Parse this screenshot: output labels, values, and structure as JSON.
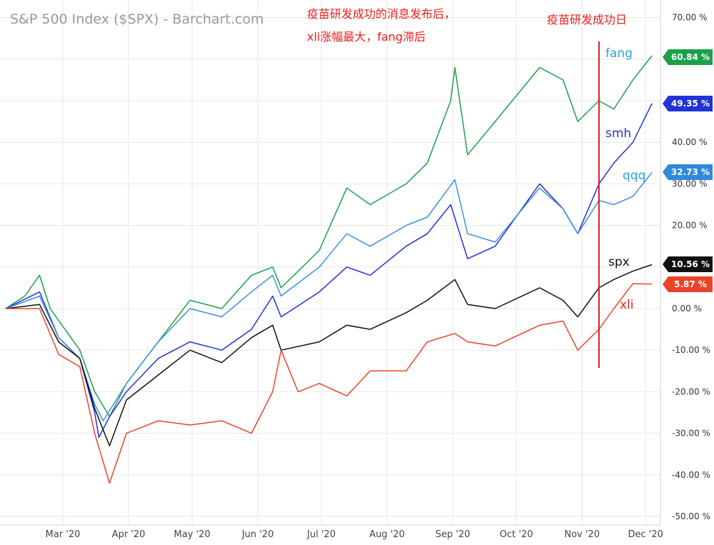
{
  "chart_data": {
    "type": "line",
    "title": "S&P 500 Index ($SPX) - Barchart.com",
    "annotations": {
      "left_line1": "疫苗研发成功的消息发布后，",
      "left_line2": "xli涨幅最大，fang滞后",
      "vline_label": "疫苗研发成功日",
      "vline_date": "2020-11-09"
    },
    "y_axis": {
      "ticks": [
        70,
        60,
        50,
        40,
        30,
        20,
        10,
        0,
        -10,
        -20,
        -30,
        -40,
        -50
      ],
      "tick_labels": [
        "70.00 %",
        "60.00 %",
        "50.00 %",
        "40.00 %",
        "30.00 %",
        "20.00 %",
        "10.00 %",
        "0.00 %",
        "-10.00 %",
        "-20.00 %",
        "-30.00 %",
        "-40.00 %",
        "-50.00 %"
      ],
      "range": [
        -50,
        70
      ]
    },
    "x_axis": {
      "tick_labels": [
        "Mar '20",
        "Apr '20",
        "May '20",
        "Jun '20",
        "Jul '20",
        "Aug '20",
        "Sep '20",
        "Oct '20",
        "Nov '20",
        "Dec '20"
      ],
      "tick_dates": [
        "2020-03-01",
        "2020-04-01",
        "2020-05-01",
        "2020-06-01",
        "2020-07-01",
        "2020-08-01",
        "2020-09-01",
        "2020-10-01",
        "2020-11-01",
        "2020-12-01"
      ],
      "range": [
        "2020-02-01",
        "2020-12-07"
      ]
    },
    "grid": true,
    "series": [
      {
        "name": "fang",
        "color": "#1aa04a",
        "label_color": "#29a3d9",
        "badge_color": "#1aa04a",
        "last_label": "60.84 %",
        "points": [
          [
            "2020-02-03",
            0
          ],
          [
            "2020-02-12",
            3
          ],
          [
            "2020-02-19",
            8
          ],
          [
            "2020-02-24",
            0
          ],
          [
            "2020-03-02",
            -5
          ],
          [
            "2020-03-09",
            -10
          ],
          [
            "2020-03-16",
            -20
          ],
          [
            "2020-03-23",
            -26
          ],
          [
            "2020-03-31",
            -18
          ],
          [
            "2020-04-15",
            -8
          ],
          [
            "2020-04-30",
            2
          ],
          [
            "2020-05-15",
            0
          ],
          [
            "2020-05-29",
            8
          ],
          [
            "2020-06-08",
            10
          ],
          [
            "2020-06-12",
            5
          ],
          [
            "2020-06-30",
            14
          ],
          [
            "2020-07-13",
            29
          ],
          [
            "2020-07-24",
            25
          ],
          [
            "2020-08-10",
            30
          ],
          [
            "2020-08-20",
            35
          ],
          [
            "2020-08-31",
            50
          ],
          [
            "2020-09-02",
            58
          ],
          [
            "2020-09-08",
            37
          ],
          [
            "2020-09-21",
            45
          ],
          [
            "2020-10-12",
            58
          ],
          [
            "2020-10-23",
            55
          ],
          [
            "2020-10-30",
            45
          ],
          [
            "2020-11-09",
            50
          ],
          [
            "2020-11-16",
            48
          ],
          [
            "2020-11-25",
            55
          ],
          [
            "2020-12-04",
            60.84
          ]
        ]
      },
      {
        "name": "smh",
        "color": "#1f33d6",
        "label_color": "#2b34b8",
        "badge_color": "#1f33d6",
        "last_label": "49.35 %",
        "points": [
          [
            "2020-02-03",
            0
          ],
          [
            "2020-02-19",
            4
          ],
          [
            "2020-02-28",
            -7
          ],
          [
            "2020-03-09",
            -12
          ],
          [
            "2020-03-16",
            -25
          ],
          [
            "2020-03-18",
            -31
          ],
          [
            "2020-03-23",
            -26
          ],
          [
            "2020-03-31",
            -20
          ],
          [
            "2020-04-15",
            -12
          ],
          [
            "2020-04-30",
            -8
          ],
          [
            "2020-05-15",
            -10
          ],
          [
            "2020-05-29",
            -5
          ],
          [
            "2020-06-08",
            3
          ],
          [
            "2020-06-12",
            -2
          ],
          [
            "2020-06-30",
            4
          ],
          [
            "2020-07-13",
            10
          ],
          [
            "2020-07-24",
            8
          ],
          [
            "2020-08-10",
            15
          ],
          [
            "2020-08-20",
            18
          ],
          [
            "2020-08-31",
            25
          ],
          [
            "2020-09-08",
            12
          ],
          [
            "2020-09-21",
            15
          ],
          [
            "2020-10-12",
            30
          ],
          [
            "2020-10-23",
            24
          ],
          [
            "2020-10-30",
            18
          ],
          [
            "2020-11-09",
            30
          ],
          [
            "2020-11-16",
            35
          ],
          [
            "2020-11-25",
            40
          ],
          [
            "2020-12-04",
            49.35
          ]
        ]
      },
      {
        "name": "qqq",
        "color": "#3f8fe0",
        "label_color": "#29a3d9",
        "badge_color": "#2e8ad9",
        "last_label": "32.73 %",
        "points": [
          [
            "2020-02-03",
            0
          ],
          [
            "2020-02-19",
            3
          ],
          [
            "2020-02-28",
            -7
          ],
          [
            "2020-03-09",
            -12
          ],
          [
            "2020-03-16",
            -23
          ],
          [
            "2020-03-20",
            -27
          ],
          [
            "2020-03-31",
            -18
          ],
          [
            "2020-04-15",
            -8
          ],
          [
            "2020-04-30",
            0
          ],
          [
            "2020-05-15",
            -2
          ],
          [
            "2020-05-29",
            4
          ],
          [
            "2020-06-08",
            8
          ],
          [
            "2020-06-12",
            3
          ],
          [
            "2020-06-30",
            10
          ],
          [
            "2020-07-13",
            18
          ],
          [
            "2020-07-24",
            15
          ],
          [
            "2020-08-10",
            20
          ],
          [
            "2020-08-20",
            22
          ],
          [
            "2020-09-02",
            31
          ],
          [
            "2020-09-08",
            18
          ],
          [
            "2020-09-21",
            16
          ],
          [
            "2020-10-12",
            29
          ],
          [
            "2020-10-23",
            24
          ],
          [
            "2020-10-30",
            18
          ],
          [
            "2020-11-09",
            26
          ],
          [
            "2020-11-16",
            25
          ],
          [
            "2020-11-25",
            27
          ],
          [
            "2020-12-04",
            32.73
          ]
        ]
      },
      {
        "name": "spx",
        "color": "#111111",
        "label_color": "#111111",
        "badge_color": "#111111",
        "last_label": "10.56 %",
        "points": [
          [
            "2020-02-03",
            0
          ],
          [
            "2020-02-19",
            1
          ],
          [
            "2020-02-28",
            -8
          ],
          [
            "2020-03-09",
            -12
          ],
          [
            "2020-03-16",
            -24
          ],
          [
            "2020-03-23",
            -33
          ],
          [
            "2020-03-31",
            -22
          ],
          [
            "2020-04-15",
            -16
          ],
          [
            "2020-04-30",
            -10
          ],
          [
            "2020-05-15",
            -13
          ],
          [
            "2020-05-29",
            -7
          ],
          [
            "2020-06-08",
            -4
          ],
          [
            "2020-06-12",
            -10
          ],
          [
            "2020-06-30",
            -8
          ],
          [
            "2020-07-13",
            -4
          ],
          [
            "2020-07-24",
            -5
          ],
          [
            "2020-08-10",
            -1
          ],
          [
            "2020-08-20",
            2
          ],
          [
            "2020-09-02",
            7
          ],
          [
            "2020-09-08",
            1
          ],
          [
            "2020-09-21",
            0
          ],
          [
            "2020-10-12",
            5
          ],
          [
            "2020-10-23",
            2
          ],
          [
            "2020-10-30",
            -2
          ],
          [
            "2020-11-09",
            5
          ],
          [
            "2020-11-16",
            7
          ],
          [
            "2020-11-25",
            9
          ],
          [
            "2020-12-04",
            10.56
          ]
        ]
      },
      {
        "name": "xli",
        "color": "#e8442a",
        "label_color": "#e8211c",
        "badge_color": "#e8442a",
        "last_label": "5.87 %",
        "points": [
          [
            "2020-02-03",
            0
          ],
          [
            "2020-02-19",
            0
          ],
          [
            "2020-02-28",
            -11
          ],
          [
            "2020-03-09",
            -14
          ],
          [
            "2020-03-16",
            -30
          ],
          [
            "2020-03-23",
            -42
          ],
          [
            "2020-03-31",
            -30
          ],
          [
            "2020-04-15",
            -27
          ],
          [
            "2020-04-30",
            -28
          ],
          [
            "2020-05-15",
            -27
          ],
          [
            "2020-05-29",
            -30
          ],
          [
            "2020-06-08",
            -20
          ],
          [
            "2020-06-12",
            -10
          ],
          [
            "2020-06-20",
            -20
          ],
          [
            "2020-06-30",
            -18
          ],
          [
            "2020-07-13",
            -21
          ],
          [
            "2020-07-24",
            -15
          ],
          [
            "2020-08-10",
            -15
          ],
          [
            "2020-08-20",
            -8
          ],
          [
            "2020-09-02",
            -6
          ],
          [
            "2020-09-08",
            -8
          ],
          [
            "2020-09-21",
            -9
          ],
          [
            "2020-10-12",
            -4
          ],
          [
            "2020-10-23",
            -3
          ],
          [
            "2020-10-30",
            -10
          ],
          [
            "2020-11-09",
            -5
          ],
          [
            "2020-11-16",
            0
          ],
          [
            "2020-11-25",
            6
          ],
          [
            "2020-12-04",
            5.87
          ]
        ]
      }
    ]
  }
}
